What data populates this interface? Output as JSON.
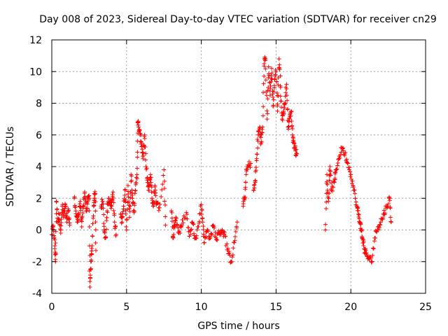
{
  "chart_data": {
    "type": "scatter",
    "title": "Day 008 of 2023, Sidereal Day-to-day VTEC variation (SDTVAR) for receiver cn29",
    "xlabel": "GPS time / hours",
    "ylabel": "SDTVAR / TECUs",
    "xlim": [
      0,
      25
    ],
    "ylim": [
      -4,
      12
    ],
    "xticks": [
      0,
      5,
      10,
      15,
      20,
      25
    ],
    "yticks": [
      -4,
      -2,
      0,
      2,
      4,
      6,
      8,
      10,
      12
    ],
    "xtick_labels": [
      "0",
      "5",
      "10",
      "15",
      "20",
      "25"
    ],
    "ytick_labels": [
      "-4",
      "-2",
      "0",
      "2",
      "4",
      "6",
      "8",
      "10",
      "12"
    ],
    "grid": true,
    "marker": "+",
    "color": "#ff0000",
    "series": [
      {
        "name": "SDTVAR",
        "note": "approximate trace of dense red point clusters",
        "tracks": [
          [
            [
              0.0,
              -0.3
            ],
            [
              0.1,
              0.2
            ],
            [
              0.2,
              -1.0
            ],
            [
              0.25,
              -2.0
            ],
            [
              0.3,
              1.8
            ],
            [
              0.4,
              0.5
            ],
            [
              0.5,
              1.0
            ],
            [
              0.6,
              -0.2
            ],
            [
              0.7,
              1.5
            ],
            [
              0.8,
              0.8
            ],
            [
              0.9,
              1.6
            ],
            [
              1.0,
              0.5
            ],
            [
              1.1,
              1.2
            ],
            [
              1.2,
              0.3
            ]
          ],
          [
            [
              1.5,
              2.0
            ],
            [
              1.6,
              1.2
            ],
            [
              1.7,
              0.5
            ],
            [
              1.8,
              1.0
            ],
            [
              1.9,
              1.8
            ],
            [
              2.0,
              0.2
            ],
            [
              2.1,
              1.5
            ],
            [
              2.2,
              2.4
            ],
            [
              2.3,
              1.2
            ],
            [
              2.4,
              1.8
            ],
            [
              2.5,
              2.0
            ],
            [
              2.55,
              -3.6
            ],
            [
              2.6,
              -2.5
            ],
            [
              2.65,
              -1.5
            ],
            [
              2.7,
              -1.0
            ],
            [
              2.8,
              1.5
            ],
            [
              2.85,
              2.0
            ],
            [
              2.9,
              2.3
            ],
            [
              2.95,
              -1.3
            ]
          ],
          [
            [
              3.3,
              1.5
            ],
            [
              3.4,
              1.8
            ],
            [
              3.5,
              0.0
            ],
            [
              3.6,
              -0.5
            ],
            [
              3.7,
              1.2
            ],
            [
              3.8,
              2.0
            ],
            [
              3.9,
              1.8
            ],
            [
              4.0,
              1.5
            ],
            [
              4.1,
              2.4
            ],
            [
              4.2,
              0.5
            ],
            [
              4.3,
              -0.3
            ]
          ],
          [
            [
              4.6,
              1.0
            ],
            [
              4.7,
              0.5
            ],
            [
              4.8,
              1.5
            ],
            [
              4.9,
              2.5
            ],
            [
              5.0,
              0.0
            ],
            [
              5.1,
              2.8
            ],
            [
              5.2,
              0.8
            ],
            [
              5.3,
              3.5
            ],
            [
              5.4,
              2.0
            ],
            [
              5.5,
              1.2
            ],
            [
              5.6,
              2.5
            ],
            [
              5.7,
              3.5
            ],
            [
              5.75,
              6.8
            ],
            [
              5.8,
              6.5
            ],
            [
              5.9,
              6.0
            ],
            [
              6.0,
              5.5
            ],
            [
              6.1,
              4.5
            ],
            [
              6.2,
              6.0
            ],
            [
              6.3,
              4.0
            ],
            [
              6.4,
              3.0
            ],
            [
              6.5,
              2.5
            ],
            [
              6.6,
              3.5
            ],
            [
              6.7,
              2.0
            ],
            [
              6.8,
              1.5
            ],
            [
              6.9,
              2.8
            ],
            [
              7.0,
              1.6
            ],
            [
              7.2,
              1.4
            ],
            [
              7.5,
              3.8
            ],
            [
              7.6,
              0.3
            ]
          ],
          [
            [
              8.0,
              1.2
            ],
            [
              8.1,
              -0.5
            ],
            [
              8.2,
              0.2
            ],
            [
              8.3,
              0.8
            ],
            [
              8.5,
              -0.2
            ],
            [
              8.7,
              0.3
            ],
            [
              9.0,
              1.1
            ],
            [
              9.2,
              -0.4
            ],
            [
              9.4,
              0.5
            ],
            [
              9.6,
              -0.5
            ],
            [
              9.8,
              0.2
            ],
            [
              10.0,
              1.6
            ],
            [
              10.1,
              0.5
            ],
            [
              10.2,
              -0.8
            ],
            [
              10.4,
              0.0
            ],
            [
              10.6,
              -0.5
            ],
            [
              10.8,
              0.3
            ],
            [
              11.0,
              -0.6
            ],
            [
              11.2,
              -0.2
            ],
            [
              11.4,
              0.0
            ],
            [
              11.6,
              -0.4
            ],
            [
              11.8,
              -1.5
            ],
            [
              12.0,
              -2.0
            ],
            [
              12.2,
              -0.8
            ],
            [
              12.4,
              0.5
            ]
          ],
          [
            [
              12.8,
              1.5
            ],
            [
              12.9,
              2.0
            ],
            [
              13.0,
              3.5
            ],
            [
              13.1,
              4.0
            ],
            [
              13.3,
              4.2
            ]
          ],
          [
            [
              13.5,
              2.5
            ],
            [
              13.6,
              3.0
            ],
            [
              13.7,
              4.5
            ],
            [
              13.8,
              6.0
            ],
            [
              13.9,
              6.5
            ],
            [
              14.0,
              5.5
            ],
            [
              14.1,
              6.5
            ],
            [
              14.2,
              10.5
            ],
            [
              14.3,
              10.8
            ],
            [
              14.4,
              7.0
            ],
            [
              14.5,
              10.3
            ],
            [
              14.6,
              8.5
            ],
            [
              14.7,
              10.2
            ],
            [
              14.8,
              7.8
            ],
            [
              14.9,
              9.5
            ],
            [
              15.0,
              10.0
            ],
            [
              15.1,
              7.5
            ],
            [
              15.2,
              10.8
            ],
            [
              15.3,
              9.0
            ],
            [
              15.4,
              7.0
            ],
            [
              15.5,
              7.5
            ],
            [
              15.6,
              8.0
            ],
            [
              15.7,
              9.2
            ],
            [
              15.8,
              6.5
            ],
            [
              15.9,
              7.0
            ],
            [
              16.0,
              7.5
            ],
            [
              16.1,
              6.0
            ],
            [
              16.2,
              5.5
            ],
            [
              16.3,
              5.0
            ],
            [
              16.4,
              4.8
            ]
          ],
          [
            [
              18.3,
              0.0
            ],
            [
              18.4,
              3.5
            ],
            [
              18.5,
              1.8
            ],
            [
              18.6,
              4.0
            ],
            [
              18.7,
              2.5
            ],
            [
              18.9,
              3.0
            ],
            [
              19.0,
              3.8
            ],
            [
              19.2,
              4.5
            ],
            [
              19.4,
              5.2
            ],
            [
              19.6,
              4.8
            ],
            [
              19.8,
              4.2
            ],
            [
              20.0,
              3.5
            ],
            [
              20.2,
              2.5
            ],
            [
              20.4,
              1.5
            ],
            [
              20.5,
              1.0
            ],
            [
              20.6,
              0.5
            ],
            [
              20.7,
              0.0
            ],
            [
              20.8,
              -0.6
            ],
            [
              20.9,
              -1.2
            ],
            [
              21.0,
              -1.5
            ],
            [
              21.2,
              -1.8
            ],
            [
              21.4,
              -2.0
            ],
            [
              21.6,
              -0.5
            ],
            [
              21.8,
              0.2
            ],
            [
              22.0,
              0.5
            ],
            [
              22.2,
              1.0
            ],
            [
              22.4,
              1.5
            ],
            [
              22.6,
              2.0
            ],
            [
              22.7,
              0.5
            ]
          ]
        ]
      }
    ]
  }
}
